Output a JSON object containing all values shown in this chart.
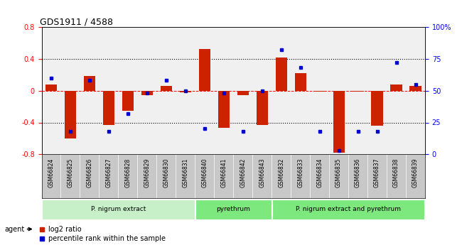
{
  "title": "GDS1911 / 4588",
  "samples": [
    "GSM66824",
    "GSM66825",
    "GSM66826",
    "GSM66827",
    "GSM66828",
    "GSM66829",
    "GSM66830",
    "GSM66831",
    "GSM66840",
    "GSM66841",
    "GSM66842",
    "GSM66843",
    "GSM66832",
    "GSM66833",
    "GSM66834",
    "GSM66835",
    "GSM66836",
    "GSM66837",
    "GSM66838",
    "GSM66839"
  ],
  "log2_ratio": [
    0.08,
    -0.6,
    0.18,
    -0.43,
    -0.25,
    -0.06,
    0.06,
    -0.02,
    0.52,
    -0.47,
    -0.06,
    -0.43,
    0.42,
    0.22,
    -0.01,
    -0.78,
    -0.01,
    -0.44,
    0.08,
    0.06
  ],
  "percentile": [
    60,
    18,
    58,
    18,
    32,
    48,
    58,
    50,
    20,
    48,
    18,
    50,
    82,
    68,
    18,
    3,
    18,
    18,
    72,
    55
  ],
  "groups": [
    {
      "label": "P. nigrum extract",
      "start": 0,
      "end": 7,
      "color": "#c8f0c8"
    },
    {
      "label": "pyrethrum",
      "start": 8,
      "end": 11,
      "color": "#7de87d"
    },
    {
      "label": "P. nigrum extract and pyrethrum",
      "start": 12,
      "end": 19,
      "color": "#7de87d"
    }
  ],
  "bar_color": "#cc2200",
  "dot_color": "#0000cc",
  "ylim_left": [
    -0.8,
    0.8
  ],
  "ylim_right": [
    0,
    100
  ],
  "legend_items": [
    {
      "label": "log2 ratio",
      "color": "#cc2200"
    },
    {
      "label": "percentile rank within the sample",
      "color": "#0000cc"
    }
  ],
  "agent_label": "agent"
}
